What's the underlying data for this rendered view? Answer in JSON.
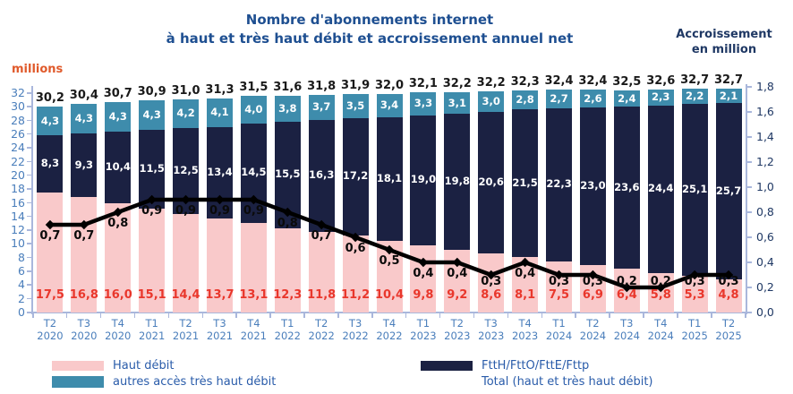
{
  "title": {
    "line1": "Nombre d'abonnements internet",
    "line2": "à haut et très haut débit et accroissement annuel net"
  },
  "left_axis_unit": "millions",
  "right_axis_unit": {
    "line1": "Accroissement",
    "line2": "en million"
  },
  "legend": {
    "haut_debit": "Haut débit",
    "autres": "autres accès très haut débit",
    "ftth": "FttH/FttO/FttE/Fttp",
    "total": "Total (haut et très haut débit)"
  },
  "colors": {
    "haut_debit": "#f9c9ca",
    "ftth": "#1b2142",
    "autres": "#3e8cac",
    "line": "#000000",
    "title_text": "#1e4f91",
    "axis_text": "#4a7ebb",
    "right_axis_text": "#1f3864",
    "red_text": "#e9372c",
    "millions_text": "#e05a2b",
    "axis_line": "#a9b7dc",
    "legend_text": "#2a5caa",
    "total_label_text": "#1a1a1a"
  },
  "chart_data": {
    "type": "bar",
    "stacked": true,
    "grid": false,
    "categories": [
      {
        "quarter": "T2",
        "year": "2020"
      },
      {
        "quarter": "T3",
        "year": "2020"
      },
      {
        "quarter": "T4",
        "year": "2020"
      },
      {
        "quarter": "T1",
        "year": "2021"
      },
      {
        "quarter": "T2",
        "year": "2021"
      },
      {
        "quarter": "T3",
        "year": "2021"
      },
      {
        "quarter": "T4",
        "year": "2021"
      },
      {
        "quarter": "T1",
        "year": "2022"
      },
      {
        "quarter": "T2",
        "year": "2022"
      },
      {
        "quarter": "T3",
        "year": "2022"
      },
      {
        "quarter": "T4",
        "year": "2022"
      },
      {
        "quarter": "T1",
        "year": "2023"
      },
      {
        "quarter": "T2",
        "year": "2023"
      },
      {
        "quarter": "T3",
        "year": "2023"
      },
      {
        "quarter": "T4",
        "year": "2023"
      },
      {
        "quarter": "T1",
        "year": "2024"
      },
      {
        "quarter": "T2",
        "year": "2024"
      },
      {
        "quarter": "T3",
        "year": "2024"
      },
      {
        "quarter": "T4",
        "year": "2024"
      },
      {
        "quarter": "T1",
        "year": "2025"
      },
      {
        "quarter": "T2",
        "year": "2025"
      }
    ],
    "series": [
      {
        "name": "Haut débit",
        "color_key": "haut_debit",
        "values": [
          17.5,
          16.8,
          16.0,
          15.1,
          14.4,
          13.7,
          13.1,
          12.3,
          11.8,
          11.2,
          10.4,
          9.8,
          9.2,
          8.6,
          8.1,
          7.5,
          6.9,
          6.4,
          5.8,
          5.3,
          4.8
        ]
      },
      {
        "name": "FttH/FttO/FttE/Fttp",
        "color_key": "ftth",
        "values": [
          8.3,
          9.3,
          10.4,
          11.5,
          12.5,
          13.4,
          14.5,
          15.5,
          16.3,
          17.2,
          18.1,
          19.0,
          19.8,
          20.6,
          21.5,
          22.3,
          23.0,
          23.6,
          24.4,
          25.1,
          25.7
        ]
      },
      {
        "name": "autres accès très haut débit",
        "color_key": "autres",
        "values": [
          4.3,
          4.3,
          4.3,
          4.3,
          4.2,
          4.1,
          4.0,
          3.8,
          3.7,
          3.5,
          3.4,
          3.3,
          3.1,
          3.0,
          2.8,
          2.7,
          2.6,
          2.4,
          2.3,
          2.2,
          2.1
        ]
      }
    ],
    "totals": [
      30.2,
      30.4,
      30.7,
      30.9,
      31.0,
      31.3,
      31.5,
      31.6,
      31.8,
      31.9,
      32.0,
      32.1,
      32.2,
      32.2,
      32.3,
      32.4,
      32.4,
      32.5,
      32.6,
      32.7,
      32.7
    ],
    "line": {
      "name": "Total (haut et très haut débit)",
      "axis": "right",
      "values": [
        0.7,
        0.7,
        0.8,
        0.9,
        0.9,
        0.9,
        0.9,
        0.8,
        0.7,
        0.6,
        0.5,
        0.4,
        0.4,
        0.3,
        0.4,
        0.3,
        0.3,
        0.2,
        0.2,
        0.3,
        0.3
      ]
    },
    "left_axis": {
      "min": 0,
      "max": 32,
      "step": 2,
      "unit": "millions"
    },
    "right_axis": {
      "min": 0,
      "max": 1.8,
      "step": 0.2,
      "unit": "million"
    },
    "number_format": "fr-comma-1-decimal"
  }
}
